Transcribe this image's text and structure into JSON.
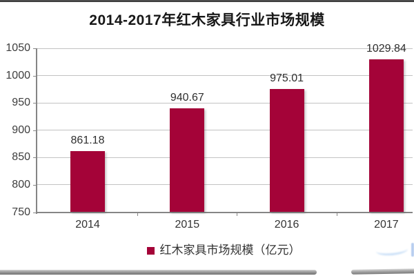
{
  "chart": {
    "title": "2014-2017年红木家具行业市场规模",
    "legend_label": "红木家具市场规模（亿元）",
    "colors": {
      "bar": "#A40338",
      "gridline": "#C2C2C2",
      "axis": "#858585",
      "title_text": "#171717",
      "label_text": "#333333"
    }
  },
  "chart_data": {
    "type": "bar",
    "title": "2014-2017年红木家具行业市场规模",
    "categories": [
      "2014",
      "2015",
      "2016",
      "2017"
    ],
    "values": [
      861.18,
      940.67,
      975.01,
      1029.84
    ],
    "value_labels": [
      "861.18",
      "940.67",
      "975.01",
      "1029.84"
    ],
    "series": [
      {
        "name": "红木家具市场规模（亿元）",
        "values": [
          861.18,
          940.67,
          975.01,
          1029.84
        ]
      }
    ],
    "xlabel": "",
    "ylabel": "",
    "ylim": [
      750,
      1050
    ],
    "yticks": [
      750,
      800,
      850,
      900,
      950,
      1000,
      1050
    ],
    "grid": true,
    "bar_color": "#A40338",
    "legend": [
      "红木家具市场规模（亿元）"
    ],
    "legend_position": "bottom"
  }
}
